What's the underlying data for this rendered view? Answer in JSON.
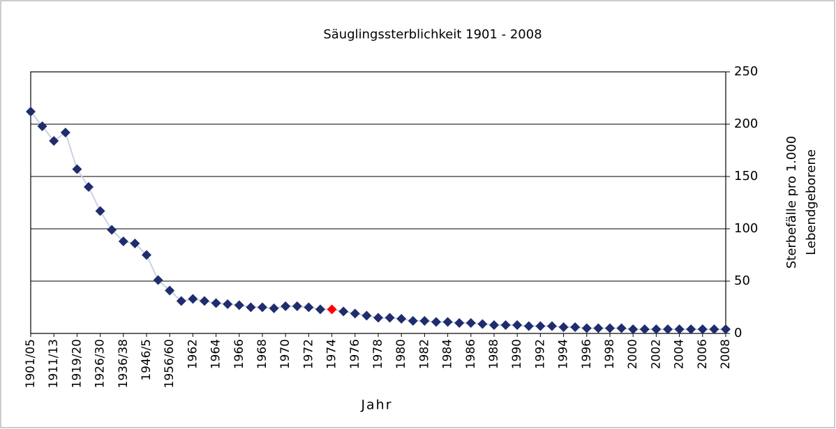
{
  "chart_data": {
    "type": "line",
    "title": "Säuglingssterblichkeit 1901 - 2008",
    "x_label": "Jahr",
    "y_label": [
      "Sterbefälle pro 1.000",
      "Lebendgeborene"
    ],
    "categories": [
      "1901/05",
      null,
      "1911/13",
      null,
      "1919/20",
      null,
      "1926/30",
      null,
      "1936/38",
      null,
      "1946/5",
      null,
      "1956/60",
      null,
      "1962",
      null,
      "1964",
      null,
      "1966",
      null,
      "1968",
      null,
      "1970",
      null,
      "1972",
      null,
      "1974",
      null,
      "1976",
      null,
      "1978",
      null,
      "1980",
      null,
      "1982",
      null,
      "1984",
      null,
      "1986",
      null,
      "1988",
      null,
      "1990",
      null,
      "1992",
      null,
      "1994",
      null,
      "1996",
      null,
      "1998",
      null,
      "2000",
      null,
      "2002",
      null,
      "2004",
      null,
      "2006",
      null,
      "2008"
    ],
    "series": [
      {
        "color": "#1f2d6e",
        "line_color": "#c9d1e2",
        "values": [
          212,
          198,
          184,
          192,
          157,
          140,
          117,
          99,
          88,
          86,
          75,
          51,
          41,
          31,
          33,
          31,
          29,
          28,
          27,
          25,
          25,
          24,
          26,
          26,
          25,
          23,
          23,
          21,
          19,
          17,
          15,
          15,
          14,
          12,
          12,
          11,
          11,
          10,
          10,
          9,
          8,
          8,
          8,
          7,
          7,
          7,
          6,
          6,
          5,
          5,
          5,
          5,
          4,
          4,
          4,
          4,
          4,
          4,
          4,
          4,
          4
        ]
      }
    ],
    "highlight": {
      "index": 26,
      "color": "#ff0000"
    },
    "ylim": [
      0,
      250
    ],
    "yticks": [
      0,
      50,
      100,
      150,
      200,
      250
    ],
    "y_axis_side": "right",
    "grid": true
  }
}
